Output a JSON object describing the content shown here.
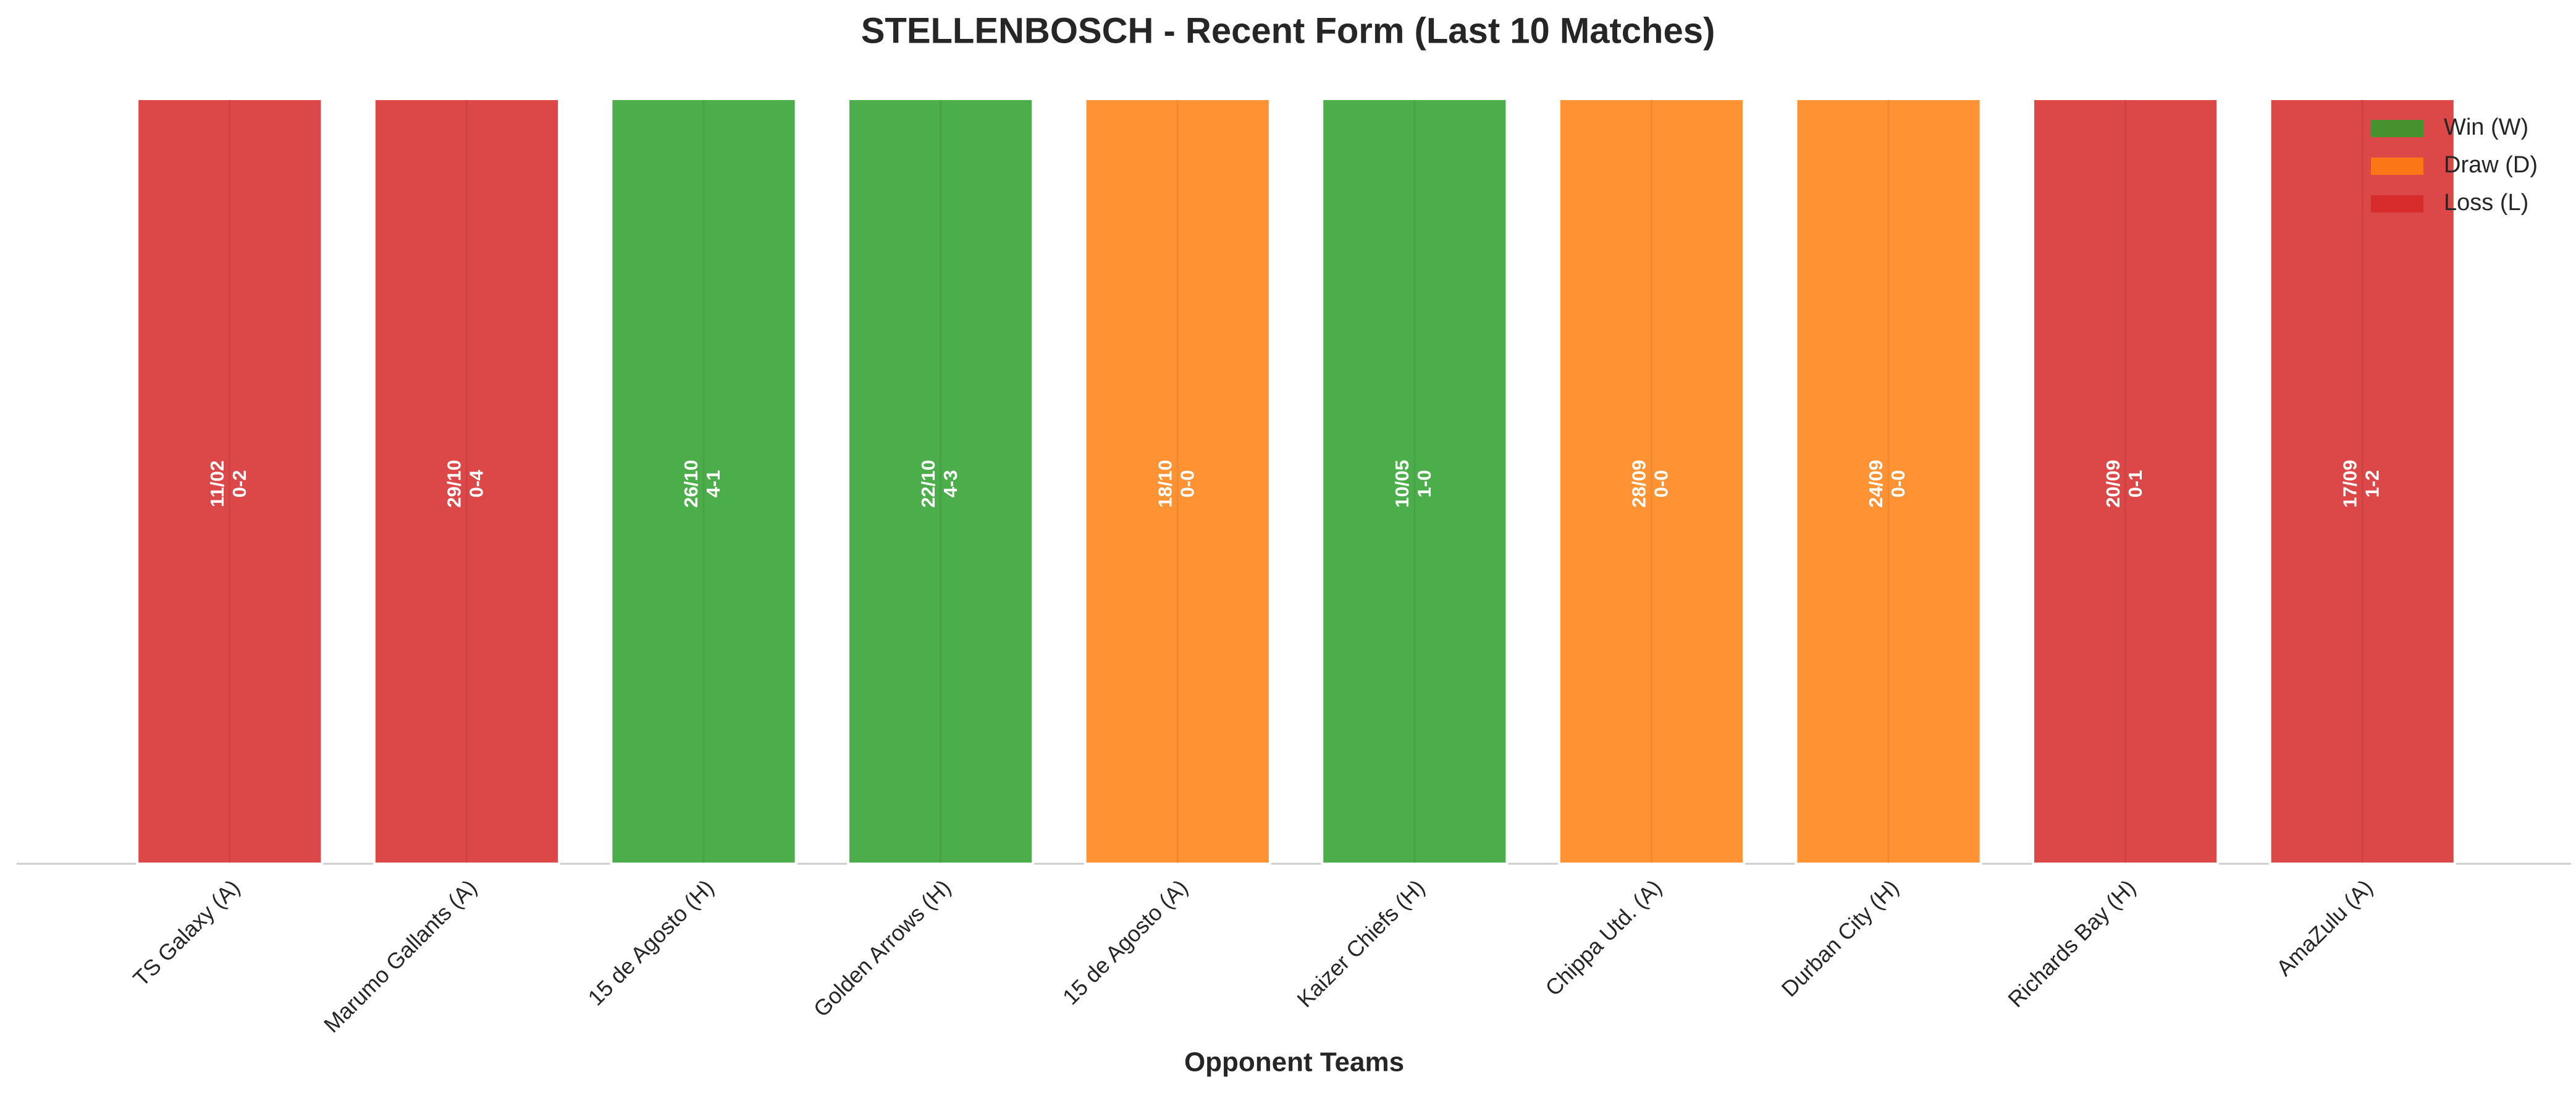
{
  "chart_data": {
    "type": "bar",
    "title": "STELLENBOSCH - Recent Form (Last 10 Matches)",
    "x_label": "Opponent Teams",
    "categories": [
      "TS Galaxy (A)",
      "Marumo Gallants (A)",
      "15 de Agosto (H)",
      "Golden Arrows (H)",
      "15 de Agosto (A)",
      "Kaizer Chiefs (H)",
      "Chippa Utd. (A)",
      "Durban City (H)",
      "Richards Bay (H)",
      "AmaZulu (A)"
    ],
    "dates": [
      "11/02",
      "29/10",
      "26/10",
      "22/10",
      "18/10",
      "10/05",
      "28/09",
      "24/09",
      "20/09",
      "17/09"
    ],
    "scores": [
      "0-2",
      "0-4",
      "4-1",
      "4-3",
      "0-0",
      "1-0",
      "0-0",
      "0-0",
      "0-1",
      "1-2"
    ],
    "series": [
      {
        "name": "Win (W)",
        "color": "#2ca02c",
        "values": [
          null,
          null,
          1,
          1,
          null,
          1,
          null,
          null,
          null,
          null
        ]
      },
      {
        "name": "Draw (D)",
        "color": "#ff7f0e",
        "values": [
          null,
          null,
          null,
          null,
          1,
          null,
          1,
          1,
          null,
          null
        ]
      },
      {
        "name": "Loss (L)",
        "color": "#d62728",
        "values": [
          1,
          1,
          null,
          null,
          null,
          null,
          null,
          null,
          1,
          1
        ]
      }
    ],
    "ylim": [
      0,
      1
    ],
    "legend": "upper right"
  }
}
